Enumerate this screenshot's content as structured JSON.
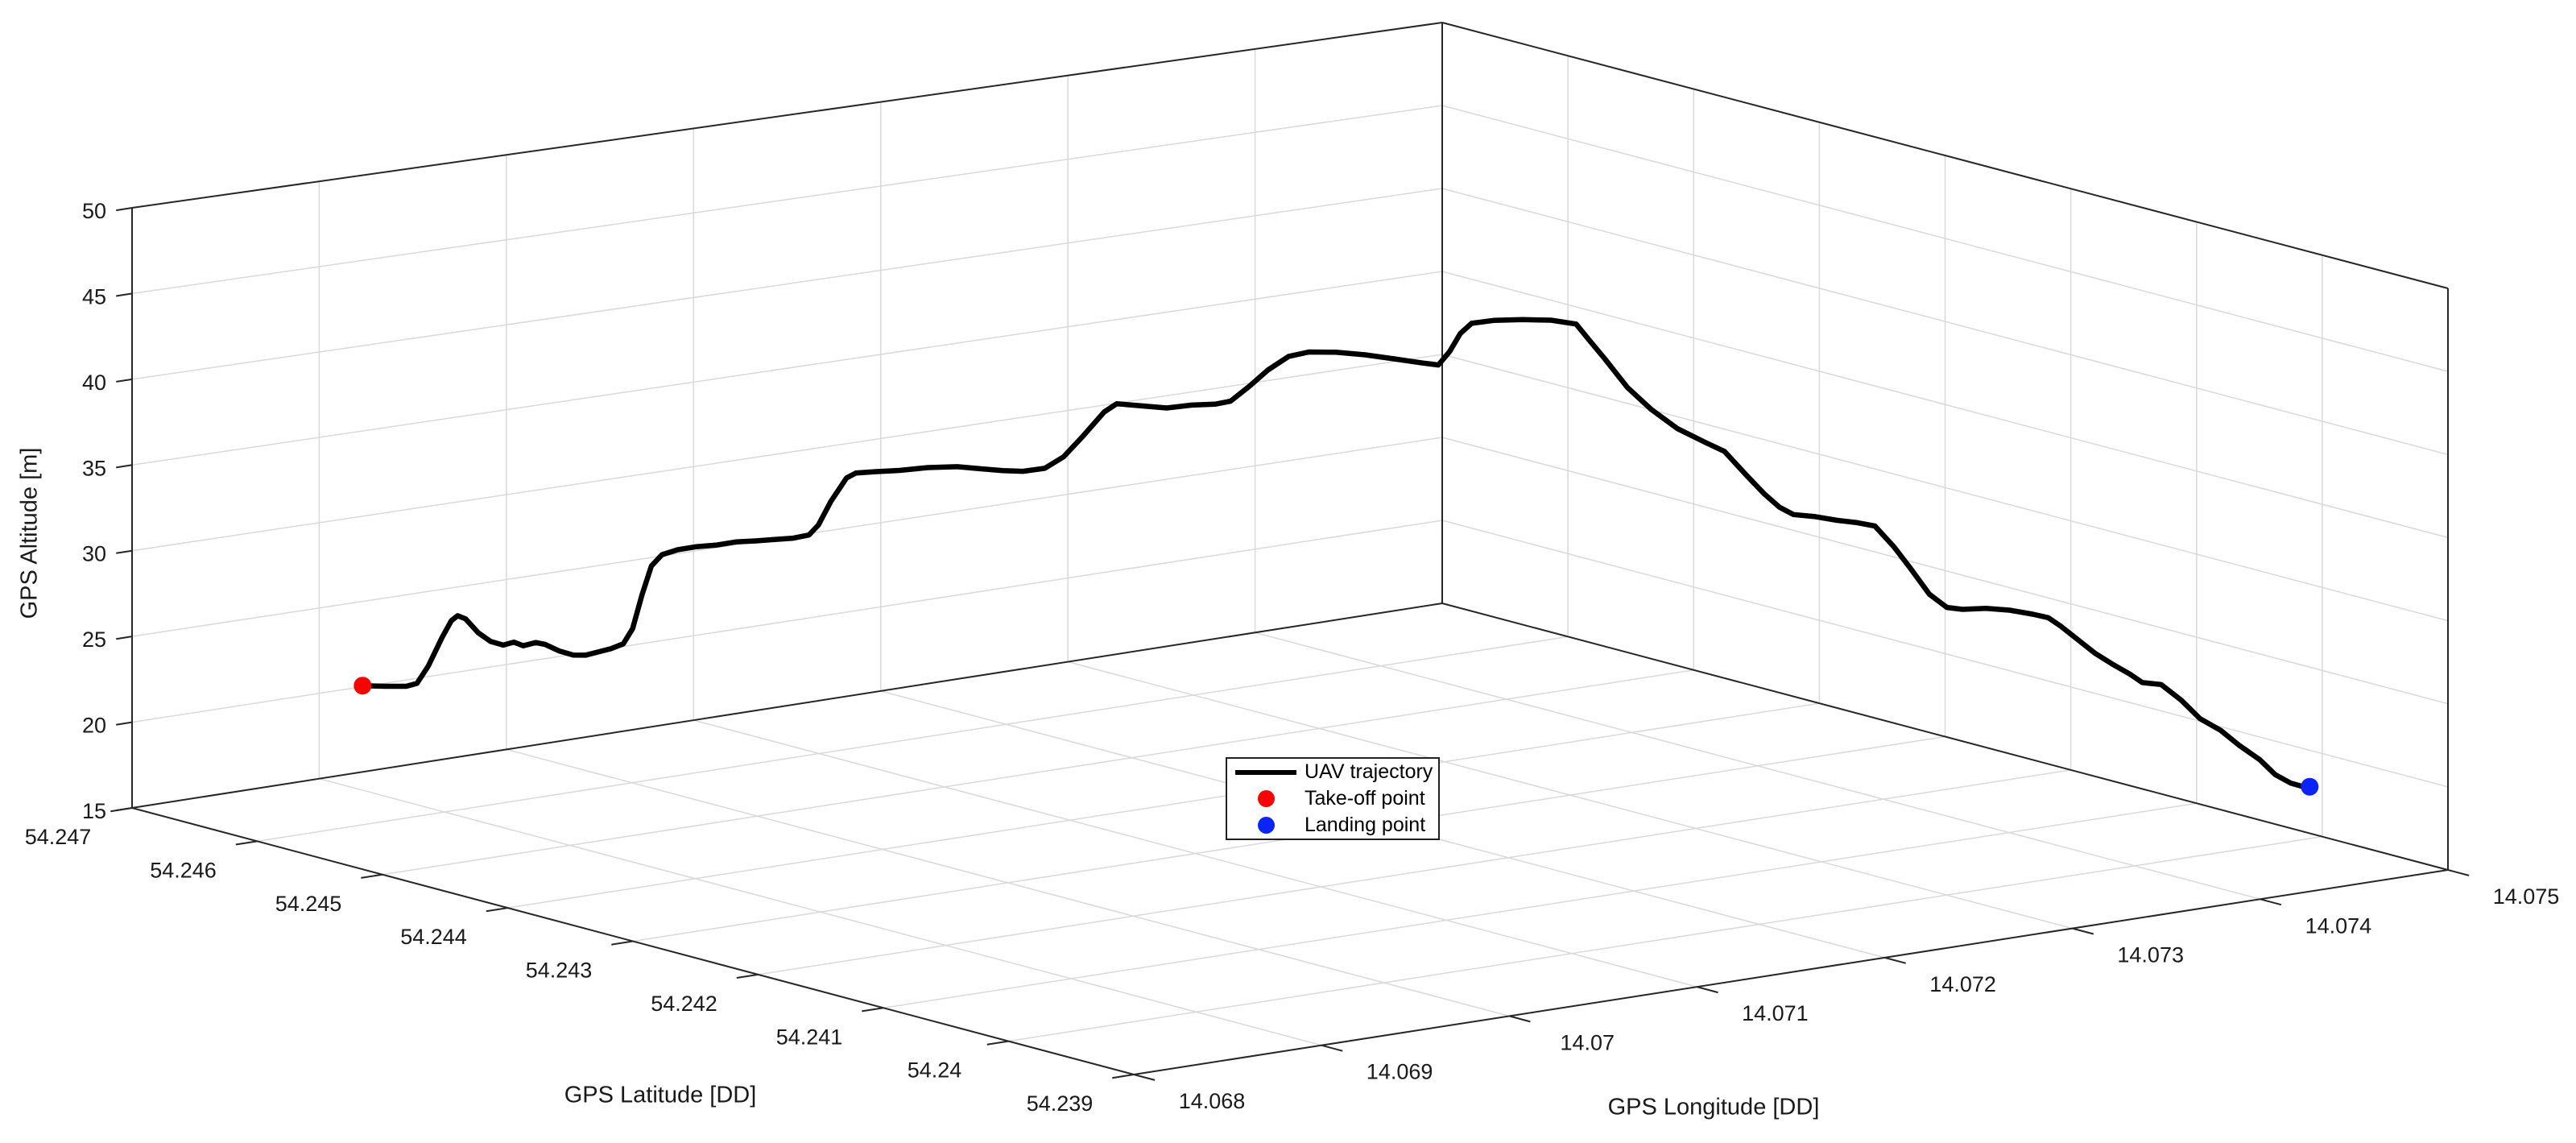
{
  "figure": {
    "background": "#ffffff",
    "legend": {
      "items": [
        {
          "label": "UAV trajectory",
          "marker": "line",
          "color": "#000000"
        },
        {
          "label": "Take-off point",
          "marker": "dot",
          "color": "#ff0000"
        },
        {
          "label": "Landing point",
          "marker": "dot",
          "color": "#0b24fb"
        }
      ]
    },
    "colors": {
      "trajectory": "#000000",
      "takeoff": "#ff0000",
      "landing": "#0b24fb",
      "grid": "#d9d9d9",
      "box_edge": "#262626",
      "text": "#1a1a1a"
    }
  },
  "chart_data": {
    "type": "line",
    "projection": "3d-perspective",
    "title": "",
    "xlabel": "GPS Longitude [DD]",
    "ylabel": "GPS Latitude [DD]",
    "zlabel": "GPS Altitude [m]",
    "xlim": [
      14.068,
      14.075
    ],
    "ylim": [
      54.239,
      54.247
    ],
    "zlim": [
      15,
      50
    ],
    "x_ticks": [
      "14.068",
      "14.069",
      "14.07",
      "14.071",
      "14.072",
      "14.073",
      "14.074",
      "14.075"
    ],
    "y_ticks": [
      "54.247",
      "54.246",
      "54.245",
      "54.244",
      "54.243",
      "54.242",
      "54.241",
      "54.24",
      "54.239"
    ],
    "z_ticks": [
      "15",
      "20",
      "25",
      "30",
      "35",
      "40",
      "45",
      "50"
    ],
    "grid": true,
    "legend_position": "center-floor",
    "series": [
      {
        "name": "UAV trajectory",
        "type": "line3d",
        "color": "#000000",
        "line_width": 6.5,
        "points_format": [
          "lat",
          "lon",
          "alt_m"
        ],
        "points": [
          [
            54.24637,
            14.06881,
            22.0
          ],
          [
            54.24629,
            14.06888,
            22.0
          ],
          [
            54.24623,
            14.06895,
            22.0
          ],
          [
            54.24619,
            14.06898,
            22.2
          ],
          [
            54.24616,
            14.06902,
            23.2
          ],
          [
            54.24611,
            14.06906,
            24.9
          ],
          [
            54.24608,
            14.06909,
            25.9
          ],
          [
            54.24606,
            14.06911,
            26.2
          ],
          [
            54.24604,
            14.06914,
            26.0
          ],
          [
            54.246,
            14.06918,
            25.2
          ],
          [
            54.24596,
            14.06922,
            24.7
          ],
          [
            54.24592,
            14.06926,
            24.5
          ],
          [
            54.24588,
            14.06929,
            24.7
          ],
          [
            54.24585,
            14.06932,
            24.5
          ],
          [
            54.24581,
            14.06936,
            24.7
          ],
          [
            54.24578,
            14.06939,
            24.6
          ],
          [
            54.24574,
            14.06944,
            24.2
          ],
          [
            54.24569,
            14.06948,
            24.0
          ],
          [
            54.24565,
            14.06952,
            24.0
          ],
          [
            54.24561,
            14.06956,
            24.2
          ],
          [
            54.24557,
            14.0696,
            24.4
          ],
          [
            54.24553,
            14.06964,
            24.7
          ],
          [
            54.2455,
            14.06967,
            25.6
          ],
          [
            54.24547,
            14.0697,
            27.6
          ],
          [
            54.24544,
            14.06973,
            29.3
          ],
          [
            54.2454,
            14.06976,
            30.0
          ],
          [
            54.24535,
            14.06981,
            30.3
          ],
          [
            54.24529,
            14.06987,
            30.5
          ],
          [
            54.24523,
            14.06994,
            30.6
          ],
          [
            54.24517,
            14.07,
            30.8
          ],
          [
            54.2451,
            14.07006,
            30.9
          ],
          [
            54.24504,
            14.07012,
            31.0
          ],
          [
            54.24498,
            14.07018,
            31.1
          ],
          [
            54.24493,
            14.07023,
            31.3
          ],
          [
            54.2449,
            14.07026,
            31.9
          ],
          [
            54.24486,
            14.0703,
            33.3
          ],
          [
            54.24481,
            14.07035,
            34.7
          ],
          [
            54.24478,
            14.07038,
            35.0
          ],
          [
            54.24472,
            14.07044,
            35.1
          ],
          [
            54.24464,
            14.07052,
            35.2
          ],
          [
            54.24455,
            14.07061,
            35.4
          ],
          [
            54.24445,
            14.0707,
            35.5
          ],
          [
            54.24437,
            14.07078,
            35.4
          ],
          [
            54.24431,
            14.07085,
            35.3
          ],
          [
            54.24424,
            14.07091,
            35.3
          ],
          [
            54.24417,
            14.07098,
            35.5
          ],
          [
            54.24411,
            14.07104,
            36.2
          ],
          [
            54.24405,
            14.0711,
            37.4
          ],
          [
            54.24398,
            14.07117,
            38.9
          ],
          [
            54.24394,
            14.07121,
            39.4
          ],
          [
            54.24386,
            14.07129,
            39.3
          ],
          [
            54.24378,
            14.07137,
            39.2
          ],
          [
            54.2437,
            14.07145,
            39.4
          ],
          [
            54.24362,
            14.07152,
            39.5
          ],
          [
            54.24357,
            14.07157,
            39.7
          ],
          [
            54.24351,
            14.07163,
            40.6
          ],
          [
            54.24345,
            14.07169,
            41.6
          ],
          [
            54.24339,
            14.07176,
            42.4
          ],
          [
            54.24332,
            14.07182,
            42.7
          ],
          [
            54.24324,
            14.07191,
            42.7
          ],
          [
            54.24314,
            14.072,
            42.6
          ],
          [
            54.24305,
            14.07209,
            42.4
          ],
          [
            54.24295,
            14.07218,
            42.2
          ],
          [
            54.2429,
            14.07223,
            42.1
          ],
          [
            54.24287,
            14.07227,
            42.9
          ],
          [
            54.24283,
            14.0723,
            44.0
          ],
          [
            54.2428,
            14.07234,
            44.6
          ],
          [
            54.24273,
            14.07241,
            44.8
          ],
          [
            54.24263,
            14.0725,
            44.9
          ],
          [
            54.24254,
            14.07259,
            44.9
          ],
          [
            54.24246,
            14.07267,
            44.7
          ],
          [
            54.24242,
            14.07271,
            43.8
          ],
          [
            54.24237,
            14.07276,
            42.7
          ],
          [
            54.24229,
            14.07283,
            41.0
          ],
          [
            54.24222,
            14.07291,
            39.7
          ],
          [
            54.24213,
            14.07299,
            38.6
          ],
          [
            54.24204,
            14.07308,
            37.8
          ],
          [
            54.24198,
            14.07314,
            37.3
          ],
          [
            54.24191,
            14.07321,
            35.9
          ],
          [
            54.24186,
            14.07327,
            34.8
          ],
          [
            54.24181,
            14.07332,
            34.0
          ],
          [
            54.24176,
            14.07336,
            33.6
          ],
          [
            54.24169,
            14.07343,
            33.5
          ],
          [
            54.24162,
            14.0735,
            33.3
          ],
          [
            54.24155,
            14.07356,
            33.2
          ],
          [
            54.2415,
            14.07362,
            33.0
          ],
          [
            54.24144,
            14.07368,
            31.8
          ],
          [
            54.24139,
            14.07373,
            30.6
          ],
          [
            54.24132,
            14.07379,
            29.0
          ],
          [
            54.24127,
            14.07385,
            28.2
          ],
          [
            54.24122,
            14.0739,
            28.1
          ],
          [
            54.24114,
            14.07397,
            28.2
          ],
          [
            54.24107,
            14.07405,
            28.1
          ],
          [
            54.24099,
            14.07412,
            27.9
          ],
          [
            54.24094,
            14.07417,
            27.7
          ],
          [
            54.2409,
            14.07421,
            27.2
          ],
          [
            54.24079,
            14.07432,
            25.6
          ],
          [
            54.24073,
            14.07437,
            25.0
          ],
          [
            54.24068,
            14.07443,
            24.4
          ],
          [
            54.24064,
            14.07447,
            23.9
          ],
          [
            54.24058,
            14.07453,
            23.8
          ],
          [
            54.24051,
            14.07459,
            22.9
          ],
          [
            54.24045,
            14.07465,
            21.8
          ],
          [
            54.24039,
            14.07472,
            21.1
          ],
          [
            54.24033,
            14.07478,
            20.2
          ],
          [
            54.24026,
            14.07484,
            19.4
          ],
          [
            54.24021,
            14.07489,
            18.5
          ],
          [
            54.24016,
            14.07494,
            18.0
          ],
          [
            54.24013,
            14.07498,
            17.8
          ],
          [
            54.2401,
            14.075,
            17.8
          ]
        ]
      },
      {
        "name": "Take-off point",
        "type": "scatter3d",
        "color": "#ff0000",
        "marker_radius": 11,
        "points": [
          [
            54.24637,
            14.06881,
            22.0
          ]
        ]
      },
      {
        "name": "Landing point",
        "type": "scatter3d",
        "color": "#0b24fb",
        "marker_radius": 11,
        "points": [
          [
            54.2401,
            14.075,
            17.8
          ]
        ]
      }
    ]
  }
}
